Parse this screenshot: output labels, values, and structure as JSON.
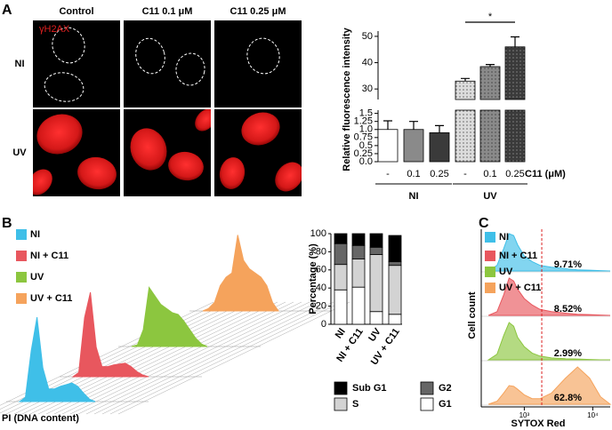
{
  "figure": {
    "panel_labels": [
      "A",
      "B",
      "C"
    ]
  },
  "micrographs": {
    "column_titles": [
      "Control",
      "C11 0.1 μM",
      "C11 0.25 μM"
    ],
    "row_labels": [
      "NI",
      "UV"
    ],
    "stain": "γH2AX"
  },
  "chart_data": [
    {
      "type": "broken_bar",
      "y_label": "Relative fluorescence intensity",
      "categories": [
        "-",
        "0.1",
        "0.25",
        "-",
        "0.1",
        "0.25"
      ],
      "category_title": "C11 (μM)",
      "groups": [
        "NI",
        "UV"
      ],
      "values": [
        1.0,
        1.0,
        0.9,
        33,
        38.5,
        46
      ],
      "errors": [
        0.27,
        0.25,
        0.22,
        1.0,
        0.8,
        3.8
      ],
      "colors": [
        "#ffffff",
        "#8a8a8a",
        "#3a3a3a",
        "#dcdcdc",
        "#8a8a8a",
        "#3a3a3a"
      ],
      "dotted": [
        false,
        false,
        false,
        true,
        true,
        true
      ],
      "ylim_segments": [
        [
          0,
          1.6
        ],
        [
          26,
          52
        ]
      ],
      "yticks_segments": [
        [
          {
            "value": 0,
            "label": "0.0"
          },
          0.25,
          0.5,
          0.75,
          {
            "value": 1,
            "label": "1.0"
          },
          1.25,
          1.5
        ],
        [
          30,
          40,
          50
        ]
      ],
      "significance": {
        "label": "*",
        "between": [
          3,
          5
        ]
      }
    },
    {
      "type": "histogram_3d",
      "x_label": "PI (DNA content)",
      "series": [
        {
          "name": "NI",
          "color": "#3fbfe8",
          "values": [
            0,
            5,
            60,
            100,
            40,
            15,
            15,
            18,
            20,
            22,
            18,
            10,
            3,
            0
          ]
        },
        {
          "name": "NI + C11",
          "color": "#e8575e",
          "values": [
            0,
            5,
            70,
            100,
            35,
            12,
            12,
            14,
            15,
            16,
            12,
            6,
            2,
            0
          ]
        },
        {
          "name": "UV",
          "color": "#8cc63f",
          "values": [
            0,
            2,
            20,
            70,
            60,
            50,
            45,
            40,
            38,
            30,
            20,
            10,
            3,
            0
          ]
        },
        {
          "name": "UV + C11",
          "color": "#f5a35c",
          "values": [
            0,
            3,
            10,
            30,
            40,
            45,
            90,
            60,
            50,
            45,
            40,
            30,
            10,
            0
          ]
        }
      ]
    },
    {
      "type": "stacked_bar",
      "y_label": "Percentage (%)",
      "categories": [
        "NI",
        "NI + C11",
        "UV",
        "UV + C11"
      ],
      "ylim": [
        0,
        100
      ],
      "yticks": [
        0,
        20,
        40,
        60,
        80,
        100
      ],
      "series": [
        {
          "name": "G1",
          "color": "#ffffff",
          "values": [
            38,
            41,
            14,
            11
          ]
        },
        {
          "name": "S",
          "color": "#d3d3d3",
          "values": [
            28,
            31,
            63,
            54
          ]
        },
        {
          "name": "G2",
          "color": "#666666",
          "values": [
            23,
            15,
            8,
            4
          ]
        },
        {
          "name": "Sub G1",
          "color": "#000000",
          "values": [
            11,
            13,
            15,
            29
          ]
        }
      ]
    },
    {
      "type": "flow_histogram",
      "x_label": "SYTOX Red",
      "y_label": "Cell count",
      "xscale": "log",
      "xlim": [
        235,
        18000
      ],
      "xticks": [
        {
          "value": 1000,
          "label": "10³"
        },
        {
          "value": 10000,
          "label": "10⁴"
        }
      ],
      "gate": 1800,
      "x": [
        300,
        400,
        500,
        600,
        700,
        800,
        1000,
        1300,
        1700,
        2500,
        4000,
        6000,
        9000,
        13000,
        18000
      ],
      "series": [
        {
          "name": "NI",
          "color": "#3fbfe8",
          "values": [
            0,
            15,
            60,
            100,
            95,
            70,
            40,
            25,
            15,
            10,
            6,
            3,
            2,
            1,
            0
          ],
          "percent": 9.71,
          "percent_label": "9.71%"
        },
        {
          "name": "NI + C11",
          "color": "#e8575e",
          "values": [
            0,
            10,
            55,
            100,
            92,
            70,
            45,
            28,
            16,
            10,
            6,
            3,
            2,
            1,
            0
          ],
          "percent": 8.52,
          "percent_label": "8.52%"
        },
        {
          "name": "UV",
          "color": "#8cc63f",
          "values": [
            0,
            15,
            65,
            100,
            90,
            60,
            35,
            18,
            10,
            5,
            3,
            2,
            1,
            0,
            0
          ],
          "percent": 2.99,
          "percent_label": "2.99%"
        },
        {
          "name": "UV + C11",
          "color": "#f5a35c",
          "values": [
            0,
            8,
            30,
            50,
            48,
            40,
            25,
            15,
            15,
            30,
            70,
            100,
            70,
            20,
            0
          ],
          "percent": 62.8,
          "percent_label": "62.8%"
        }
      ]
    }
  ]
}
